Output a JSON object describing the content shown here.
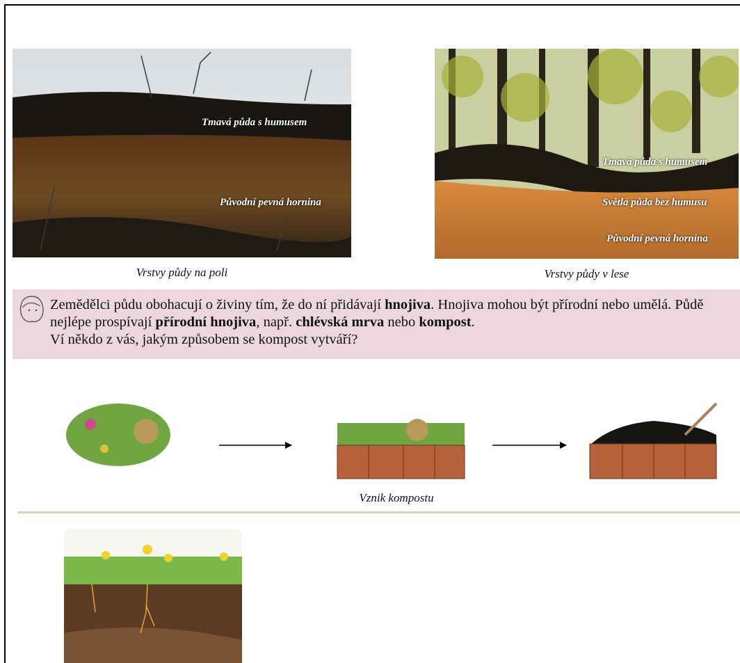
{
  "photos": [
    {
      "labels": [
        "Tmavá půda s humusem",
        "Původní pevná hornina"
      ],
      "caption": "Vrstvy půdy na poli"
    },
    {
      "labels": [
        "Tmavá půda s humusem",
        "Světlá půda bez humusu",
        "Původní pevná hornina"
      ],
      "caption": "Vrstvy půdy v lese"
    }
  ],
  "callout": {
    "paragraph": [
      {
        "text": "Zemědělci půdu obohacují o živiny tím, že do ní přidávají ",
        "bold": false
      },
      {
        "text": "hnojiva",
        "bold": true
      },
      {
        "text": ". Hnojiva mohou být přírodní nebo umělá. Půdě nejlépe prospívají ",
        "bold": false
      },
      {
        "text": "přírodní hnojiva",
        "bold": true
      },
      {
        "text": ", např. ",
        "bold": false
      },
      {
        "text": "chlévská mrva",
        "bold": true
      },
      {
        "text": " nebo ",
        "bold": false
      },
      {
        "text": "kompost",
        "bold": true
      },
      {
        "text": ".",
        "bold": false
      }
    ],
    "question": "Ví někdo z vás,  jakým způsobem se kompost vytváří?"
  },
  "compost": {
    "caption": "Vznik kompostu"
  }
}
